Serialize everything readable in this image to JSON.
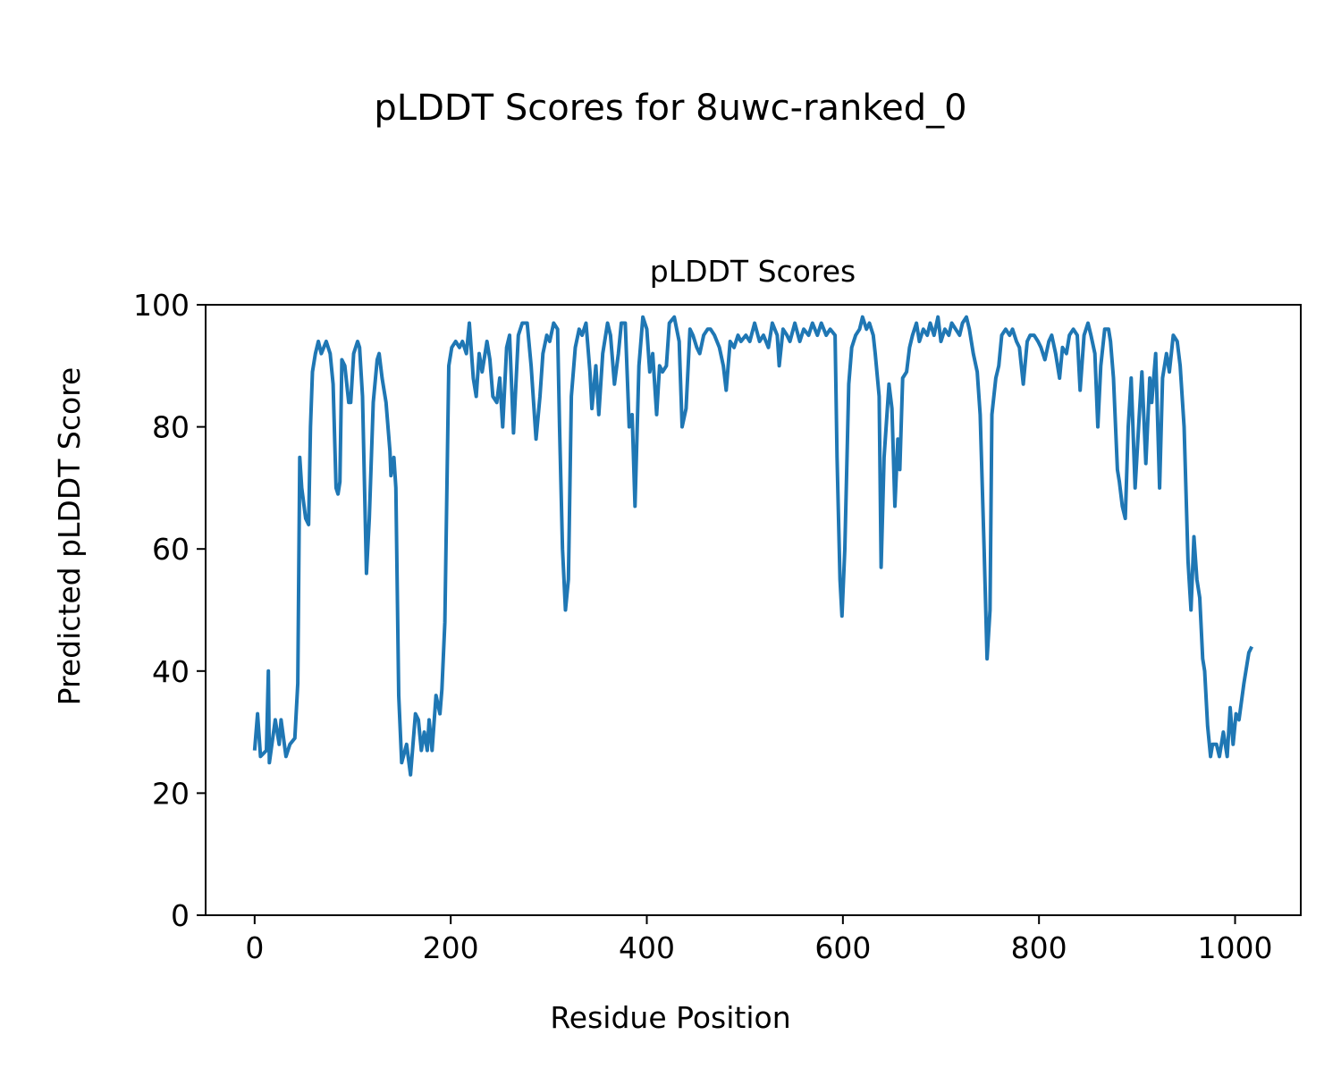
{
  "suptitle": "pLDDT Scores for 8uwc-ranked_0",
  "chart_data": {
    "type": "line",
    "title": "pLDDT Scores",
    "xlabel": "Residue Position",
    "ylabel": "Predicted pLDDT Score",
    "xlim": [
      -50,
      1067
    ],
    "ylim": [
      0,
      100
    ],
    "xticks": [
      0,
      200,
      400,
      600,
      800,
      1000
    ],
    "yticks": [
      0,
      20,
      40,
      60,
      80,
      100
    ],
    "grid": false,
    "color": "#1f77b4",
    "series": [
      {
        "name": "pLDDT",
        "x": [
          0,
          3,
          6,
          12,
          14,
          15,
          21,
          25,
          27,
          32,
          36,
          41,
          44,
          46,
          48,
          52,
          55,
          57,
          59,
          62,
          65,
          68,
          73,
          77,
          80,
          83,
          85,
          87,
          89,
          92,
          96,
          98,
          101,
          105,
          107,
          110,
          114,
          117,
          121,
          125,
          127,
          130,
          134,
          138,
          139,
          142,
          144,
          147,
          150,
          155,
          159,
          164,
          167,
          170,
          173,
          176,
          178,
          181,
          185,
          189,
          191,
          194,
          198,
          201,
          205,
          209,
          212,
          216,
          219,
          223,
          226,
          229,
          232,
          237,
          240,
          243,
          247,
          250,
          253,
          257,
          260,
          264,
          269,
          273,
          278,
          282,
          287,
          291,
          294,
          298,
          301,
          305,
          309,
          311,
          314,
          317,
          320,
          323,
          327,
          331,
          334,
          338,
          342,
          344,
          348,
          351,
          355,
          360,
          363,
          367,
          371,
          374,
          378,
          382,
          385,
          388,
          392,
          396,
          400,
          403,
          406,
          410,
          413,
          416,
          420,
          423,
          428,
          433,
          436,
          440,
          444,
          447,
          451,
          454,
          458,
          462,
          465,
          469,
          474,
          478,
          481,
          485,
          489,
          493,
          496,
          501,
          505,
          510,
          515,
          519,
          524,
          528,
          533,
          535,
          539,
          543,
          546,
          551,
          556,
          560,
          565,
          569,
          574,
          578,
          583,
          587,
          592,
          594,
          597,
          599,
          602,
          606,
          609,
          613,
          617,
          620,
          624,
          627,
          631,
          633,
          637,
          639,
          642,
          647,
          650,
          653,
          656,
          658,
          661,
          665,
          668,
          671,
          675,
          678,
          682,
          686,
          689,
          693,
          697,
          700,
          704,
          708,
          711,
          715,
          719,
          722,
          726,
          729,
          733,
          737,
          740,
          744,
          747,
          750,
          752,
          756,
          759,
          762,
          766,
          770,
          773,
          777,
          780,
          784,
          788,
          791,
          795,
          799,
          802,
          806,
          810,
          813,
          817,
          821,
          824,
          828,
          831,
          835,
          839,
          842,
          846,
          850,
          853,
          857,
          860,
          863,
          867,
          871,
          873,
          876,
          880,
          882,
          885,
          888,
          891,
          894,
          898,
          902,
          905,
          909,
          913,
          915,
          919,
          923,
          926,
          930,
          933,
          937,
          941,
          944,
          948,
          952,
          955,
          958,
          961,
          964,
          967,
          969,
          972,
          975,
          977,
          981,
          984,
          988,
          992,
          995,
          998,
          1001,
          1004,
          1009,
          1014,
          1017
        ],
        "y": [
          27,
          33,
          26,
          27,
          40,
          25,
          32,
          28,
          32,
          26,
          28,
          29,
          38,
          75,
          70,
          65,
          64,
          80,
          89,
          92,
          94,
          92,
          94,
          92,
          87,
          70,
          69,
          71,
          91,
          90,
          84,
          84,
          92,
          94,
          93,
          85,
          56,
          65,
          84,
          91,
          92,
          88,
          84,
          76,
          72,
          75,
          70,
          36,
          25,
          28,
          23,
          33,
          32,
          27,
          30,
          27,
          32,
          27,
          36,
          33,
          37,
          48,
          90,
          93,
          94,
          93,
          94,
          92,
          97,
          88,
          85,
          92,
          89,
          94,
          91,
          85,
          84,
          88,
          80,
          93,
          95,
          79,
          95,
          97,
          97,
          90,
          78,
          85,
          92,
          95,
          94,
          97,
          96,
          80,
          60,
          50,
          55,
          85,
          93,
          96,
          95,
          97,
          89,
          83,
          90,
          82,
          92,
          97,
          95,
          87,
          92,
          97,
          97,
          80,
          82,
          67,
          90,
          98,
          96,
          89,
          92,
          82,
          90,
          89,
          90,
          97,
          98,
          94,
          80,
          83,
          96,
          95,
          93,
          92,
          95,
          96,
          96,
          95,
          93,
          90,
          86,
          94,
          93,
          95,
          94,
          95,
          94,
          97,
          94,
          95,
          93,
          97,
          95,
          90,
          96,
          95,
          94,
          97,
          94,
          96,
          95,
          97,
          95,
          97,
          95,
          96,
          95,
          75,
          55,
          49,
          60,
          87,
          93,
          95,
          96,
          98,
          96,
          97,
          95,
          92,
          85,
          57,
          75,
          87,
          83,
          67,
          78,
          73,
          88,
          89,
          93,
          95,
          97,
          94,
          96,
          95,
          97,
          95,
          98,
          94,
          96,
          95,
          97,
          96,
          95,
          97,
          98,
          96,
          92,
          89,
          82,
          60,
          42,
          50,
          82,
          88,
          90,
          95,
          96,
          95,
          96,
          94,
          93,
          87,
          94,
          95,
          95,
          94,
          93,
          91,
          94,
          95,
          92,
          88,
          93,
          92,
          95,
          96,
          95,
          86,
          95,
          97,
          95,
          92,
          80,
          90,
          96,
          96,
          94,
          88,
          73,
          71,
          67,
          65,
          80,
          88,
          70,
          81,
          89,
          74,
          88,
          84,
          92,
          70,
          88,
          92,
          89,
          95,
          94,
          90,
          80,
          58,
          50,
          62,
          55,
          52,
          42,
          40,
          31,
          26,
          28,
          28,
          26,
          30,
          26,
          34,
          28,
          33,
          32,
          38,
          43,
          44
        ]
      }
    ]
  }
}
